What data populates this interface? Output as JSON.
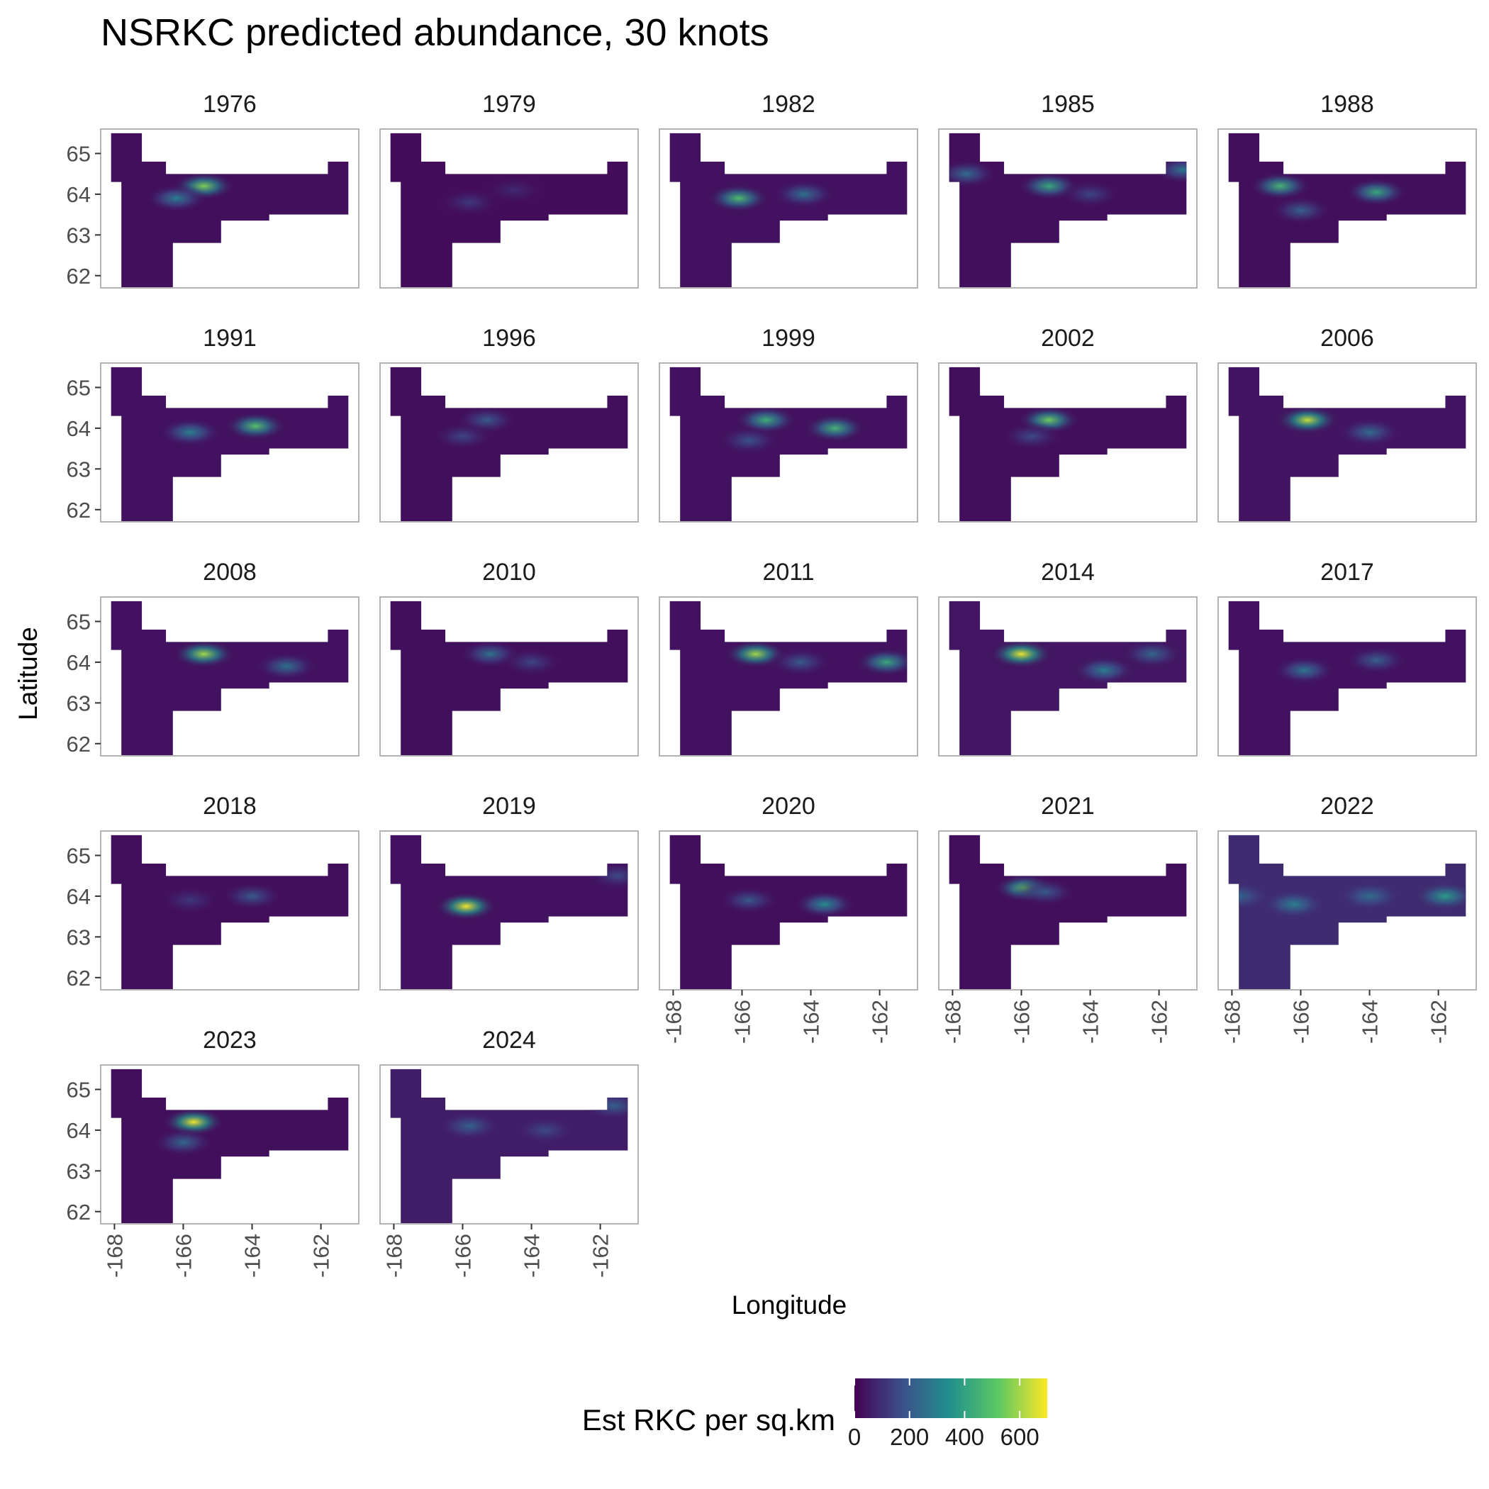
{
  "title": "NSRKC predicted abundance, 30 knots",
  "xlabel": "Longitude",
  "ylabel": "Latitude",
  "legend": {
    "title": "Est RKC per sq.km",
    "ticks": [
      0,
      200,
      400,
      600
    ],
    "tick_labels": [
      "0",
      "200",
      "400",
      "600"
    ],
    "range": [
      0,
      700
    ],
    "palette": "viridis",
    "colors": [
      "#440154",
      "#3b528b",
      "#21918c",
      "#5ec962",
      "#fde725"
    ],
    "position": "bottom"
  },
  "chart_data": {
    "type": "heatmap",
    "title": "NSRKC predicted abundance, 30 knots",
    "xlabel": "Longitude",
    "ylabel": "Latitude",
    "xlim": [
      -168.4,
      -160.9
    ],
    "ylim": [
      61.7,
      65.6
    ],
    "x_ticks": [
      -168,
      -166,
      -164,
      -162
    ],
    "y_ticks": [
      62,
      63,
      64,
      65
    ],
    "grid": false,
    "facets": [
      {
        "year": "1976",
        "background": 30,
        "hotspots": [
          {
            "lon": -165.4,
            "lat": 64.2,
            "value": 560
          },
          {
            "lon": -166.2,
            "lat": 63.9,
            "value": 300
          }
        ]
      },
      {
        "year": "1979",
        "background": 25,
        "hotspots": [
          {
            "lon": -165.8,
            "lat": 63.8,
            "value": 120
          },
          {
            "lon": -164.5,
            "lat": 64.1,
            "value": 90
          }
        ]
      },
      {
        "year": "1982",
        "background": 35,
        "hotspots": [
          {
            "lon": -166.1,
            "lat": 63.9,
            "value": 480
          },
          {
            "lon": -164.2,
            "lat": 64.0,
            "value": 260
          }
        ]
      },
      {
        "year": "1985",
        "background": 30,
        "hotspots": [
          {
            "lon": -165.2,
            "lat": 64.2,
            "value": 420
          },
          {
            "lon": -167.6,
            "lat": 64.5,
            "value": 250
          },
          {
            "lon": -161.3,
            "lat": 64.6,
            "value": 280
          },
          {
            "lon": -164.0,
            "lat": 64.0,
            "value": 150
          }
        ]
      },
      {
        "year": "1988",
        "background": 30,
        "hotspots": [
          {
            "lon": -166.6,
            "lat": 64.2,
            "value": 460
          },
          {
            "lon": -163.8,
            "lat": 64.05,
            "value": 420
          },
          {
            "lon": -166.0,
            "lat": 63.6,
            "value": 220
          }
        ]
      },
      {
        "year": "1991",
        "background": 35,
        "hotspots": [
          {
            "lon": -163.9,
            "lat": 64.05,
            "value": 500
          },
          {
            "lon": -165.8,
            "lat": 63.9,
            "value": 300
          }
        ]
      },
      {
        "year": "1996",
        "background": 30,
        "hotspots": [
          {
            "lon": -165.3,
            "lat": 64.2,
            "value": 200
          },
          {
            "lon": -166.0,
            "lat": 63.8,
            "value": 150
          }
        ]
      },
      {
        "year": "1999",
        "background": 35,
        "hotspots": [
          {
            "lon": -165.3,
            "lat": 64.2,
            "value": 440
          },
          {
            "lon": -163.3,
            "lat": 64.0,
            "value": 460
          },
          {
            "lon": -165.8,
            "lat": 63.7,
            "value": 180
          }
        ]
      },
      {
        "year": "2002",
        "background": 30,
        "hotspots": [
          {
            "lon": -165.2,
            "lat": 64.2,
            "value": 540
          },
          {
            "lon": -165.7,
            "lat": 63.8,
            "value": 160
          }
        ]
      },
      {
        "year": "2006",
        "background": 40,
        "hotspots": [
          {
            "lon": -165.8,
            "lat": 64.2,
            "value": 640
          },
          {
            "lon": -164.0,
            "lat": 63.9,
            "value": 250
          }
        ]
      },
      {
        "year": "2008",
        "background": 35,
        "hotspots": [
          {
            "lon": -165.4,
            "lat": 64.2,
            "value": 600
          },
          {
            "lon": -163.0,
            "lat": 63.9,
            "value": 260
          }
        ]
      },
      {
        "year": "2010",
        "background": 30,
        "hotspots": [
          {
            "lon": -165.2,
            "lat": 64.2,
            "value": 260
          },
          {
            "lon": -164.0,
            "lat": 64.0,
            "value": 150
          }
        ]
      },
      {
        "year": "2011",
        "background": 35,
        "hotspots": [
          {
            "lon": -165.6,
            "lat": 64.2,
            "value": 600
          },
          {
            "lon": -161.8,
            "lat": 64.0,
            "value": 420
          },
          {
            "lon": -164.3,
            "lat": 64.0,
            "value": 200
          }
        ]
      },
      {
        "year": "2014",
        "background": 45,
        "hotspots": [
          {
            "lon": -166.0,
            "lat": 64.2,
            "value": 680
          },
          {
            "lon": -163.6,
            "lat": 63.8,
            "value": 300
          },
          {
            "lon": -162.2,
            "lat": 64.2,
            "value": 230
          }
        ]
      },
      {
        "year": "2017",
        "background": 35,
        "hotspots": [
          {
            "lon": -165.9,
            "lat": 63.8,
            "value": 280
          },
          {
            "lon": -163.8,
            "lat": 64.05,
            "value": 220
          }
        ]
      },
      {
        "year": "2018",
        "background": 30,
        "hotspots": [
          {
            "lon": -164.0,
            "lat": 64.0,
            "value": 200
          },
          {
            "lon": -165.8,
            "lat": 63.9,
            "value": 120
          }
        ]
      },
      {
        "year": "2019",
        "background": 35,
        "hotspots": [
          {
            "lon": -165.9,
            "lat": 63.75,
            "value": 690
          },
          {
            "lon": -161.5,
            "lat": 64.5,
            "value": 160
          }
        ]
      },
      {
        "year": "2020",
        "background": 30,
        "hotspots": [
          {
            "lon": -163.6,
            "lat": 63.8,
            "value": 340
          },
          {
            "lon": -165.8,
            "lat": 63.9,
            "value": 200
          }
        ]
      },
      {
        "year": "2021",
        "background": 30,
        "hotspots": [
          {
            "lon": -165.9,
            "lat": 64.2,
            "value": 520
          },
          {
            "lon": -165.3,
            "lat": 64.1,
            "value": 200
          }
        ]
      },
      {
        "year": "2022",
        "background": 90,
        "hotspots": [
          {
            "lon": -166.2,
            "lat": 63.8,
            "value": 300
          },
          {
            "lon": -161.8,
            "lat": 64.0,
            "value": 380
          },
          {
            "lon": -164.0,
            "lat": 64.0,
            "value": 250
          },
          {
            "lon": -167.8,
            "lat": 64.0,
            "value": 230
          }
        ]
      },
      {
        "year": "2023",
        "background": 30,
        "hotspots": [
          {
            "lon": -165.7,
            "lat": 64.2,
            "value": 690
          },
          {
            "lon": -166.0,
            "lat": 63.7,
            "value": 240
          }
        ]
      },
      {
        "year": "2024",
        "background": 60,
        "hotspots": [
          {
            "lon": -165.8,
            "lat": 64.1,
            "value": 220
          },
          {
            "lon": -161.6,
            "lat": 64.6,
            "value": 220
          },
          {
            "lon": -163.6,
            "lat": 64.0,
            "value": 160
          }
        ]
      }
    ]
  }
}
